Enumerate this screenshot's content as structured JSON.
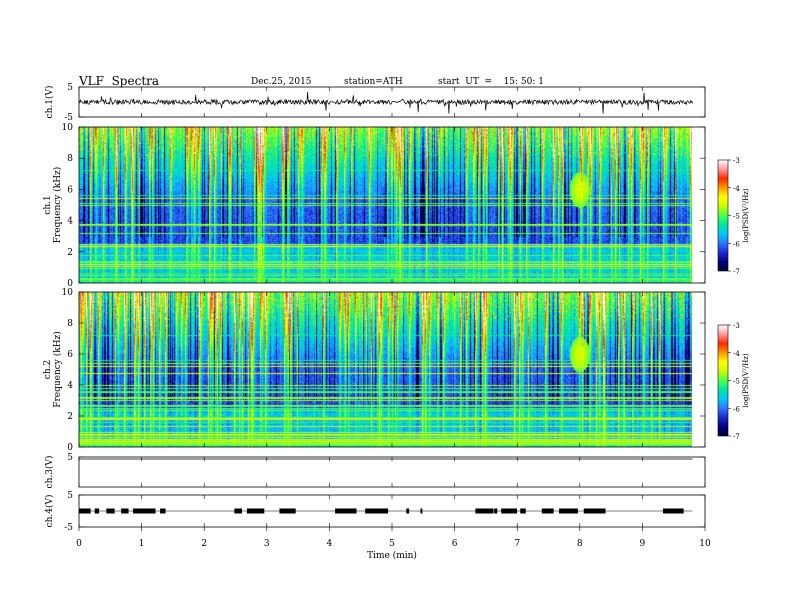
{
  "header": {
    "title": "VLF  Spectra",
    "date": "Dec.25, 2015",
    "station": "station=ATH",
    "start": "start  UT  =    15: 50: 1"
  },
  "chart_data": [
    {
      "type": "line",
      "name": "ch1-waveform",
      "ylabel": "ch.1(V)",
      "ylim": [
        -5,
        5
      ],
      "y_ticks": [
        "5",
        "-5"
      ],
      "xlim": [
        0,
        10
      ],
      "baseline": 0
    },
    {
      "type": "heatmap",
      "name": "ch1-spectrogram",
      "ylabel": "ch.1 Frequency (kHz)",
      "ylim": [
        0,
        10
      ],
      "xlim": [
        0,
        10
      ],
      "y_ticks": [
        "0",
        "2",
        "4",
        "6",
        "8",
        "10"
      ],
      "data_extent_x": 9.8,
      "colorbar": {
        "label": "log(PSD(V²/Hz)",
        "range": [
          -7,
          -3
        ],
        "ticks": [
          "-3",
          "-4",
          "-5",
          "-6",
          "-7"
        ]
      }
    },
    {
      "type": "heatmap",
      "name": "ch2-spectrogram",
      "ylabel": "ch.2 Frequency (kHz)",
      "ylim": [
        0,
        10
      ],
      "xlim": [
        0,
        10
      ],
      "y_ticks": [
        "0",
        "2",
        "4",
        "6",
        "8",
        "10"
      ],
      "data_extent_x": 9.8,
      "colorbar": {
        "label": "log(PSD(V²/Hz)",
        "range": [
          -7,
          -3
        ],
        "ticks": [
          "-3",
          "-4",
          "-5",
          "-6",
          "-7"
        ]
      }
    },
    {
      "type": "line",
      "name": "ch3-waveform",
      "ylabel": "ch.3(V)",
      "ylim": [
        -5,
        5
      ],
      "y_ticks": [
        "5"
      ],
      "xlim": [
        0,
        10
      ],
      "baseline": 5
    },
    {
      "type": "line",
      "name": "ch4-waveform",
      "ylabel": "ch.4(V)",
      "ylim": [
        -5,
        5
      ],
      "y_ticks": [
        "5",
        "-5"
      ],
      "xlim": [
        0,
        10
      ],
      "baseline": 0
    }
  ],
  "x_axis": {
    "label": "Time  (min)",
    "ticks": [
      "0",
      "1",
      "2",
      "3",
      "4",
      "5",
      "6",
      "7",
      "8",
      "9",
      "10"
    ]
  },
  "colormap": [
    "#000033",
    "#000080",
    "#1a2cd0",
    "#2f74ff",
    "#00c8ff",
    "#00e6a0",
    "#4cff4c",
    "#c8ff00",
    "#ffff00",
    "#ff9900",
    "#ff2a00",
    "#ff9aa0",
    "#ffffff"
  ]
}
